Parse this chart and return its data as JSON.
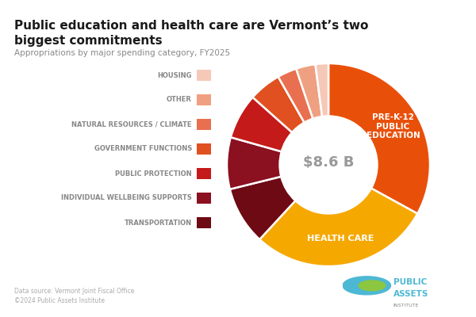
{
  "title": "Public education and health care are Vermont’s two\nbiggest commitments",
  "subtitle": "Appropriations by major spending category, FY2025",
  "center_label": "$8.6 B",
  "datasource": "Data source: Vermont Joint Fiscal Office",
  "copyright": "©2024 Public Assets Institute",
  "categories": [
    "PRE-K-12\nPUBLIC\nEDUCATION",
    "HEALTH CARE",
    "TRANSPORTATION",
    "INDIVIDUAL WELLBEING SUPPORTS",
    "PUBLIC PROTECTION",
    "GOVERNMENT FUNCTIONS",
    "NATURAL RESOURCES / CLIMATE",
    "OTHER",
    "HOUSING"
  ],
  "legend_labels": [
    "HOUSING",
    "OTHER",
    "NATURAL RESOURCES / CLIMATE",
    "GOVERNMENT FUNCTIONS",
    "PUBLIC PROTECTION",
    "INDIVIDUAL WELLBEING SUPPORTS",
    "TRANSPORTATION"
  ],
  "values": [
    32,
    28,
    9,
    8,
    7,
    5,
    3,
    3,
    2
  ],
  "colors": [
    "#E8500A",
    "#F5A800",
    "#6E0A14",
    "#8B1020",
    "#C41A1A",
    "#E05020",
    "#E87050",
    "#EFA080",
    "#F5C8B8"
  ],
  "legend_colors": [
    "#F5C8B8",
    "#EFA080",
    "#E87050",
    "#E05020",
    "#C41A1A",
    "#8B1020",
    "#6E0A14"
  ],
  "bg_color": "#FFFFFF",
  "wedge_text_color": "#FFFFFF",
  "center_text_color": "#999999",
  "title_color": "#1a1a1a",
  "subtitle_color": "#888888",
  "legend_text_color": "#888888",
  "footer_color": "#aaaaaa"
}
